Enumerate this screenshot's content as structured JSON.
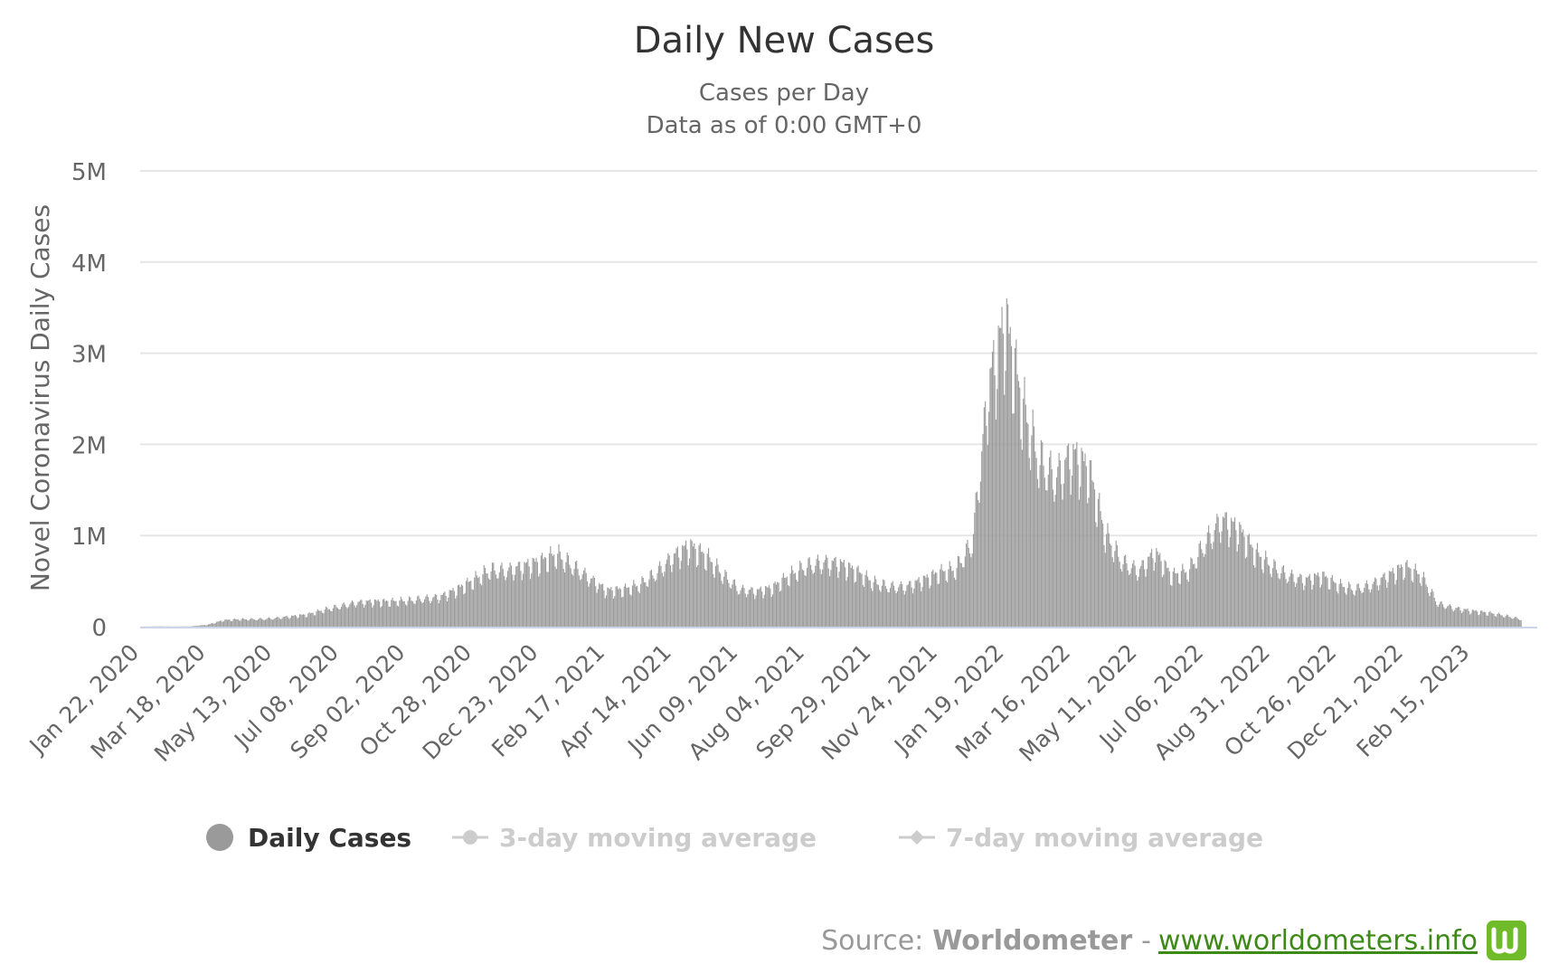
{
  "title": "Daily New Cases",
  "subtitle_1": "Cases per Day",
  "subtitle_2": "Data as of 0:00 GMT+0",
  "legend": {
    "daily_cases": "Daily Cases",
    "ma3": "3-day moving average",
    "ma7": "7-day moving average"
  },
  "source": {
    "prefix": "Source:",
    "brand": "Worldometer",
    "separator": "-",
    "link_text": "www.worldometers.info"
  },
  "colors": {
    "bars": "#9a9a9a",
    "gridline": "#e6e6e6",
    "axis_line": "#ccd6eb",
    "legend_active": "#333333",
    "legend_inactive": "#cccccc",
    "logo": "#6fbb2a",
    "link": "#3d8a18"
  },
  "chart_data": {
    "type": "bar",
    "title": "Daily New Cases",
    "ylabel": "Novel Coronavirus Daily Cases",
    "xlabel": "",
    "ylim": [
      0,
      5000000
    ],
    "y_ticks": [
      {
        "value": 0,
        "label": "0"
      },
      {
        "value": 1000000,
        "label": "1M"
      },
      {
        "value": 2000000,
        "label": "2M"
      },
      {
        "value": 3000000,
        "label": "3M"
      },
      {
        "value": 4000000,
        "label": "4M"
      },
      {
        "value": 5000000,
        "label": "5M"
      }
    ],
    "x_tick_labels": [
      "Jan 22, 2020",
      "Mar 18, 2020",
      "May 13, 2020",
      "Jul 08, 2020",
      "Sep 02, 2020",
      "Oct 28, 2020",
      "Dec 23, 2020",
      "Feb 17, 2021",
      "Apr 14, 2021",
      "Jun 09, 2021",
      "Aug 04, 2021",
      "Sep 29, 2021",
      "Nov 24, 2021",
      "Jan 19, 2022",
      "Mar 16, 2022",
      "May 11, 2022",
      "Jul 06, 2022",
      "Aug 31, 2022",
      "Oct 26, 2022",
      "Dec 21, 2022",
      "Feb 15, 2023"
    ],
    "grid": true,
    "legend_position": "bottom",
    "series": [
      {
        "name": "Daily Cases",
        "x": [
          "Jan 22, 2020",
          "Feb 05, 2020",
          "Feb 19, 2020",
          "Mar 04, 2020",
          "Mar 18, 2020",
          "Apr 01, 2020",
          "Apr 15, 2020",
          "Apr 29, 2020",
          "May 13, 2020",
          "May 27, 2020",
          "Jun 10, 2020",
          "Jun 24, 2020",
          "Jul 08, 2020",
          "Jul 22, 2020",
          "Aug 05, 2020",
          "Aug 19, 2020",
          "Sep 02, 2020",
          "Sep 16, 2020",
          "Sep 30, 2020",
          "Oct 14, 2020",
          "Oct 28, 2020",
          "Nov 11, 2020",
          "Nov 25, 2020",
          "Dec 09, 2020",
          "Dec 23, 2020",
          "Jan 06, 2021",
          "Jan 20, 2021",
          "Feb 03, 2021",
          "Feb 17, 2021",
          "Mar 03, 2021",
          "Mar 17, 2021",
          "Mar 31, 2021",
          "Apr 14, 2021",
          "Apr 28, 2021",
          "May 12, 2021",
          "May 26, 2021",
          "Jun 09, 2021",
          "Jun 23, 2021",
          "Jul 07, 2021",
          "Jul 21, 2021",
          "Aug 04, 2021",
          "Aug 18, 2021",
          "Sep 01, 2021",
          "Sep 15, 2021",
          "Sep 29, 2021",
          "Oct 13, 2021",
          "Oct 27, 2021",
          "Nov 10, 2021",
          "Nov 24, 2021",
          "Dec 08, 2021",
          "Dec 22, 2021",
          "Jan 05, 2022",
          "Jan 19, 2022",
          "Feb 02, 2022",
          "Feb 16, 2022",
          "Mar 02, 2022",
          "Mar 16, 2022",
          "Mar 30, 2022",
          "Apr 13, 2022",
          "Apr 27, 2022",
          "May 11, 2022",
          "May 25, 2022",
          "Jun 08, 2022",
          "Jun 22, 2022",
          "Jul 06, 2022",
          "Jul 20, 2022",
          "Aug 03, 2022",
          "Aug 17, 2022",
          "Aug 31, 2022",
          "Sep 14, 2022",
          "Sep 28, 2022",
          "Oct 12, 2022",
          "Oct 26, 2022",
          "Nov 09, 2022",
          "Nov 23, 2022",
          "Dec 07, 2022",
          "Dec 21, 2022",
          "Jan 04, 2023",
          "Jan 18, 2023",
          "Feb 01, 2023",
          "Feb 15, 2023",
          "Mar 01, 2023",
          "Mar 15, 2023",
          "Mar 29, 2023"
        ],
        "values": [
          1000,
          3000,
          2000,
          3000,
          20000,
          70000,
          80000,
          80000,
          90000,
          110000,
          130000,
          180000,
          220000,
          260000,
          270000,
          270000,
          280000,
          300000,
          320000,
          400000,
          500000,
          610000,
          600000,
          650000,
          700000,
          780000,
          650000,
          520000,
          390000,
          400000,
          450000,
          580000,
          750000,
          870000,
          760000,
          560000,
          400000,
          380000,
          420000,
          550000,
          650000,
          690000,
          680000,
          600000,
          480000,
          430000,
          430000,
          500000,
          580000,
          620000,
          900000,
          2600000,
          3300000,
          2400000,
          1800000,
          1600000,
          1850000,
          1700000,
          1000000,
          700000,
          600000,
          800000,
          550000,
          600000,
          900000,
          1150000,
          1050000,
          800000,
          650000,
          550000,
          500000,
          550000,
          450000,
          400000,
          450000,
          550000,
          650000,
          550000,
          250000,
          200000,
          170000,
          150000,
          120000,
          80000
        ]
      },
      {
        "name": "3-day moving average",
        "visible": false
      },
      {
        "name": "7-day moving average",
        "visible": false
      }
    ]
  }
}
